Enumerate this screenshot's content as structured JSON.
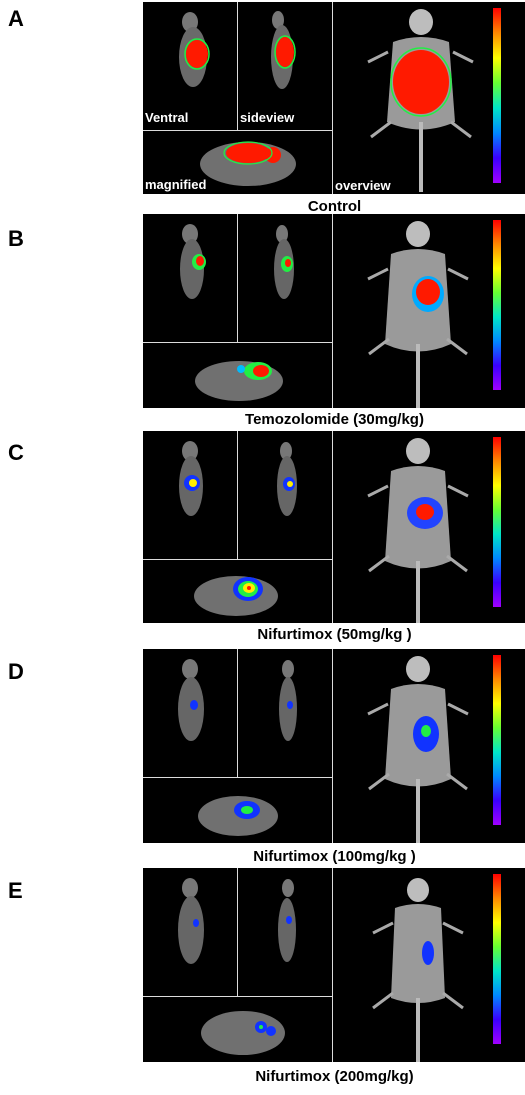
{
  "figure": {
    "panels": [
      {
        "letter": "A",
        "caption": "Control",
        "labels": {
          "ventral": "Ventral",
          "side": "sideview",
          "magnified": "magnified",
          "overview": "overview"
        },
        "signal": "red"
      },
      {
        "letter": "B",
        "caption": "Temozolomide (30mg/kg)",
        "labels": {},
        "signal": "red-small"
      },
      {
        "letter": "C",
        "caption": "Nifurtimox (50mg/kg )",
        "labels": {},
        "signal": "yellow-blue"
      },
      {
        "letter": "D",
        "caption": "Nifurtimox (100mg/kg )",
        "labels": {},
        "signal": "blue"
      },
      {
        "letter": "E",
        "caption": "Nifurtimox (200mg/kg)",
        "labels": {},
        "signal": "blue-small"
      }
    ],
    "colors": {
      "max": "#ff0000",
      "mid": "#ffff00",
      "low": "#0055ff",
      "min": "#a000ff"
    }
  }
}
